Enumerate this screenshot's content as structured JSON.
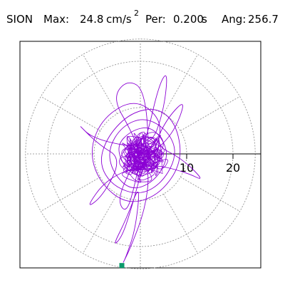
{
  "header": {
    "station": "SION",
    "max_label": "Max:",
    "max_value": "24.8",
    "max_unit": "cm/s",
    "max_exp": "2",
    "per_label": "Per:",
    "per_value": "0.200",
    "per_unit": "s",
    "ang_label": "Ang:",
    "ang_value": "256.7"
  },
  "chart_data": {
    "type": "scatter",
    "description_free": true,
    "polar": true,
    "rings": [
      10,
      20
    ],
    "ring_spoke_step_deg": 30,
    "radial_tick_labels": [
      "10",
      "20"
    ],
    "radial_axis_angle_deg": 0,
    "max_radius": 24.8,
    "peak_angle_deg": 256.7,
    "path": [
      [
        0,
        0
      ],
      [
        2,
        1
      ],
      [
        4,
        -1
      ],
      [
        3,
        -4
      ],
      [
        -1,
        -5
      ],
      [
        -4,
        -2
      ],
      [
        -5,
        2
      ],
      [
        -2,
        5
      ],
      [
        2,
        6
      ],
      [
        5,
        3
      ],
      [
        6,
        -1
      ],
      [
        3,
        -6
      ],
      [
        -2,
        -8
      ],
      [
        -6,
        -4
      ],
      [
        -7,
        1
      ],
      [
        -4,
        6
      ],
      [
        1,
        8
      ],
      [
        6,
        5
      ],
      [
        8,
        0
      ],
      [
        5,
        -6
      ],
      [
        0,
        -9
      ],
      [
        -6,
        -7
      ],
      [
        -9,
        -2
      ],
      [
        -7,
        4
      ],
      [
        -2,
        9
      ],
      [
        4,
        10
      ],
      [
        8,
        6
      ],
      [
        9,
        -2
      ],
      [
        4,
        -9
      ],
      [
        -3,
        -11
      ],
      [
        -9,
        -6
      ],
      [
        -11,
        1
      ],
      [
        -8,
        8
      ],
      [
        -1,
        12
      ],
      [
        5,
        7
      ],
      [
        3,
        0
      ],
      [
        -1,
        -3
      ],
      [
        -3,
        1
      ],
      [
        0,
        3
      ],
      [
        2,
        -1
      ],
      [
        1,
        14
      ],
      [
        -3,
        16
      ],
      [
        -6,
        12
      ],
      [
        -2,
        5
      ],
      [
        0,
        0
      ],
      [
        -1,
        -6
      ],
      [
        -3,
        -13
      ],
      [
        -5,
        -10
      ],
      [
        -2,
        -3
      ],
      [
        1,
        2
      ],
      [
        4,
        15
      ],
      [
        6,
        18
      ],
      [
        5,
        9
      ],
      [
        2,
        1
      ],
      [
        -10,
        3
      ],
      [
        -14,
        7
      ],
      [
        -9,
        2
      ],
      [
        -4,
        -1
      ],
      [
        -8,
        -9
      ],
      [
        -12,
        -12
      ],
      [
        -7,
        -5
      ],
      [
        2,
        -2
      ],
      [
        10,
        -4
      ],
      [
        14,
        -6
      ],
      [
        9,
        -1
      ],
      [
        3,
        2
      ],
      [
        6,
        8
      ],
      [
        10,
        12
      ],
      [
        7,
        4
      ],
      [
        1,
        -1
      ],
      [
        -2,
        -12
      ],
      [
        -4,
        -18
      ],
      [
        -6,
        -20
      ],
      [
        -3,
        -14
      ],
      [
        0,
        -6
      ],
      [
        -1,
        -16
      ],
      [
        -3,
        -22
      ],
      [
        -4,
        -24.1
      ],
      [
        -2,
        -20
      ],
      [
        1,
        -12
      ],
      [
        2,
        -4
      ],
      [
        0,
        0
      ]
    ],
    "end_marker": [
      -4,
      -24.1
    ],
    "colors": {
      "trace": "#8b00d4",
      "marker": "#0c9a6c",
      "grid": "#888888"
    }
  }
}
